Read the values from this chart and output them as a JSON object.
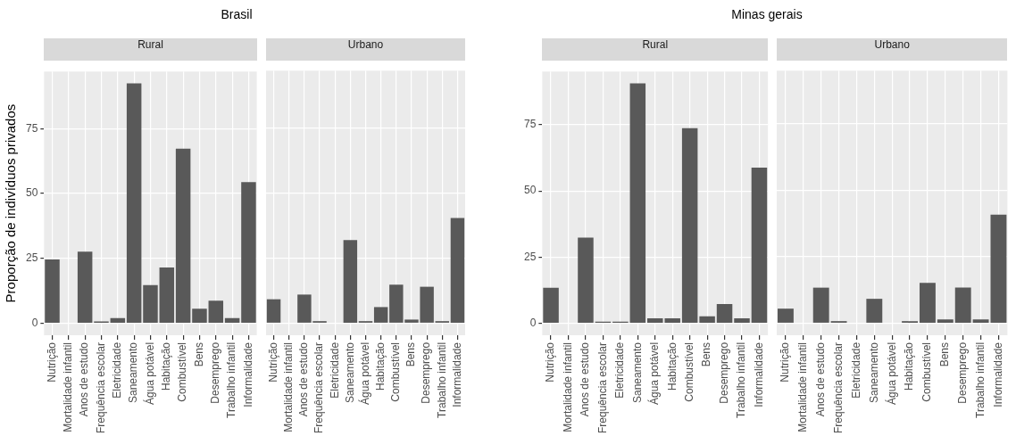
{
  "chart_data": [
    {
      "type": "bar",
      "title": "Brasil",
      "subtitle": "Rural",
      "ylabel": "Proporção de indivíduos privados",
      "categories": [
        "Nutrição",
        "Mortalidade infantil",
        "Anos de estudo",
        "Frequência escolar",
        "Eletricidade",
        "Saneamento",
        "Água potável",
        "Habitação",
        "Combustível",
        "Bens",
        "Desemprego",
        "Trabalho infantil",
        "Informalidade"
      ],
      "values": [
        24.6,
        0,
        27.6,
        0.7,
        2,
        92.4,
        14.7,
        21.5,
        67.3,
        5.6,
        8.7,
        2,
        54.4
      ],
      "color": "#595959",
      "ylim": [
        -4.6,
        97
      ],
      "yticks": [
        0,
        25,
        50,
        75
      ],
      "grid": true
    },
    {
      "type": "bar",
      "subtitle": "Urbano",
      "categories": [
        "Nutrição",
        "Mortalidade infantil",
        "Anos de estudo",
        "Frequência escolar",
        "Eletricidade",
        "Saneamento",
        "Água potável",
        "Habitação",
        "Combustível",
        "Bens",
        "Desemprego",
        "Trabalho infantil",
        "Informalidade"
      ],
      "values": [
        9.2,
        0,
        11,
        0.8,
        0,
        31.9,
        0.8,
        6.2,
        14.8,
        1.4,
        14,
        0.8,
        40.4
      ],
      "color": "#595959",
      "ylim": [
        -4.6,
        97
      ],
      "yticks": [
        0,
        25,
        50,
        75
      ],
      "grid": true,
      "tick_labels": "x"
    },
    {
      "type": "bar",
      "title": "Minas gerais",
      "subtitle": "Rural",
      "categories": [
        "Nutrição",
        "Mortalidade infantil",
        "Anos de estudo",
        "Frequência escolar",
        "Eletricidade",
        "Saneamento",
        "Água potável",
        "Habitação",
        "Combustível",
        "Bens",
        "Desemprego",
        "Trabalho infantil",
        "Informalidade"
      ],
      "values": [
        13.4,
        0,
        32.4,
        0.6,
        0.6,
        90.6,
        1.9,
        1.9,
        73.7,
        2.6,
        7.3,
        1.9,
        58.8
      ],
      "color": "#595959",
      "ylim": [
        -4.5,
        95.1
      ],
      "yticks": [
        0,
        25,
        50,
        75
      ],
      "grid": true
    },
    {
      "type": "bar",
      "subtitle": "Urbano",
      "categories": [
        "Nutrição",
        "Mortalidade infantil",
        "Anos de estudo",
        "Frequência escolar",
        "Eletricidade",
        "Saneamento",
        "Água potável",
        "Habitação",
        "Combustível",
        "Bens",
        "Desemprego",
        "Trabalho infantil",
        "Informalidade"
      ],
      "values": [
        5.5,
        0,
        13.4,
        0.8,
        0,
        9.2,
        0,
        0.8,
        15.2,
        1.4,
        13.4,
        1.4,
        40.9
      ],
      "color": "#595959",
      "ylim": [
        -4.5,
        95.1
      ],
      "yticks": [
        0,
        25,
        50,
        75
      ],
      "grid": true,
      "tick_labels": "x"
    }
  ]
}
